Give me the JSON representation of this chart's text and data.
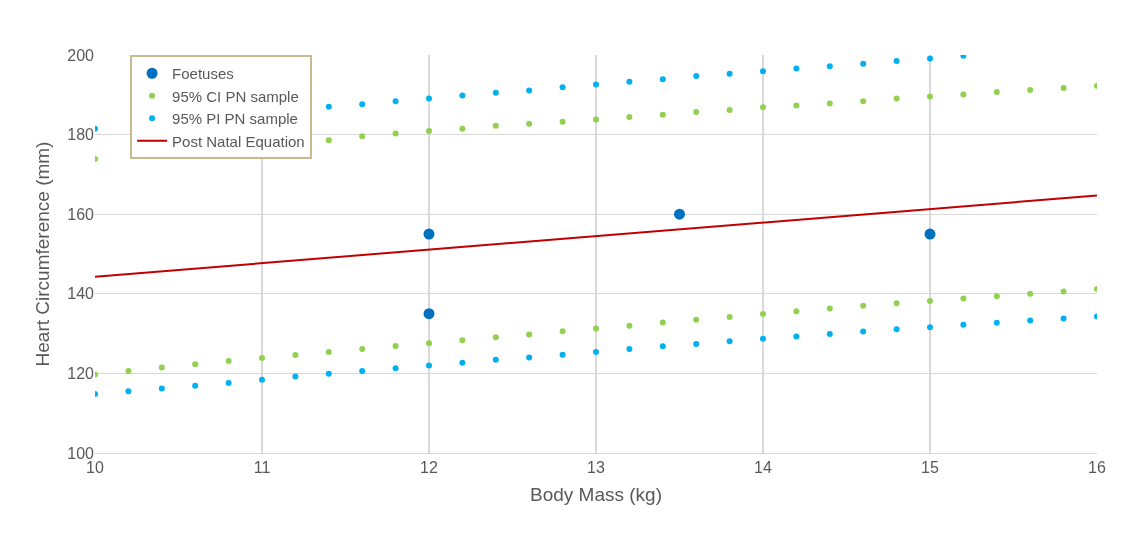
{
  "chart_data": {
    "type": "scatter",
    "xlabel": "Body Mass (kg)",
    "ylabel": "Heart Circumference (mm)",
    "xlim": [
      10,
      16
    ],
    "xticks": [
      10,
      11,
      12,
      13,
      14,
      15,
      16
    ],
    "ylim": [
      100,
      200
    ],
    "yticks": [
      100,
      120,
      140,
      160,
      180,
      200
    ],
    "grid": true,
    "legend": "top left",
    "series": [
      {
        "name": "Foetuses",
        "marker": "circle",
        "color": "#0070c0",
        "x": [
          12,
          12,
          13.5,
          15
        ],
        "values": [
          155,
          135,
          160,
          155
        ]
      },
      {
        "name": "95% CI PN sample",
        "marker": "circle",
        "color": "#92d050",
        "x": [
          10,
          10.2,
          10.4,
          10.6,
          10.8,
          11,
          11.2,
          11.4,
          11.6,
          11.8,
          12,
          12.2,
          12.4,
          12.6,
          12.8,
          13,
          13.2,
          13.4,
          13.6,
          13.8,
          14,
          14.2,
          14.4,
          14.6,
          14.8,
          15,
          15.2,
          15.4,
          15.6,
          15.8,
          16,
          10,
          10.2,
          10.4,
          10.6,
          10.8,
          11,
          11.2,
          11.4,
          11.6,
          11.8,
          12,
          12.2,
          12.4,
          12.6,
          12.8,
          13,
          13.2,
          13.4,
          13.6,
          13.8,
          14,
          14.2,
          14.4,
          14.6,
          14.8,
          15,
          15.2,
          15.4,
          15.6,
          15.8,
          16
        ],
        "values": [
          173.9,
          null,
          null,
          null,
          null,
          null,
          null,
          178.6,
          179.6,
          180.3,
          180.9,
          181.5,
          182.2,
          182.7,
          183.2,
          183.8,
          184.4,
          185,
          185.7,
          186.2,
          186.9,
          187.3,
          187.8,
          188.4,
          189.1,
          189.6,
          190.1,
          190.7,
          191.2,
          191.7,
          192.2,
          119.7,
          120.6,
          121.5,
          122.3,
          123.1,
          123.9,
          124.6,
          125.4,
          126.1,
          126.9,
          127.6,
          128.3,
          129.1,
          129.8,
          130.6,
          131.3,
          132,
          132.8,
          133.5,
          134.2,
          134.9,
          135.6,
          136.3,
          137,
          137.6,
          138.2,
          138.8,
          139.4,
          140,
          140.6,
          141.2
        ]
      },
      {
        "name": "95% PI PN sample",
        "marker": "circle",
        "color": "#00b0f0",
        "x": [
          10,
          10.2,
          10.4,
          10.6,
          10.8,
          11,
          11.2,
          11.4,
          11.6,
          11.8,
          12,
          12.2,
          12.4,
          12.6,
          12.8,
          13,
          13.2,
          13.4,
          13.6,
          13.8,
          14,
          14.2,
          14.4,
          14.6,
          14.8,
          15,
          15.2,
          10,
          10.2,
          10.4,
          10.6,
          10.8,
          11,
          11.2,
          11.4,
          11.6,
          11.8,
          12,
          12.2,
          12.4,
          12.6,
          12.8,
          13,
          13.2,
          13.4,
          13.6,
          13.8,
          14,
          14.2,
          14.4,
          14.6,
          14.8,
          15,
          15.2,
          15.4,
          15.6,
          15.8,
          16
        ],
        "values": [
          181.5,
          null,
          null,
          null,
          null,
          null,
          null,
          187,
          187.6,
          188.4,
          189.1,
          189.8,
          190.5,
          191.1,
          191.9,
          192.6,
          193.3,
          193.9,
          194.7,
          195.3,
          195.9,
          196.6,
          197.2,
          197.8,
          198.5,
          199.1,
          199.8,
          114.8,
          115.5,
          116.2,
          116.9,
          117.6,
          118.4,
          119.2,
          119.9,
          120.6,
          121.3,
          122,
          122.7,
          123.4,
          124,
          124.7,
          125.4,
          126.1,
          126.8,
          127.4,
          128.1,
          128.7,
          129.3,
          129.9,
          130.5,
          131.1,
          131.6,
          132.2,
          132.7,
          133.3,
          133.8,
          134.3
        ]
      },
      {
        "name": "Post Natal Equation",
        "type": "line",
        "marker": "none",
        "line_style": "solid",
        "color": "#c00000",
        "x": [
          10,
          16
        ],
        "values": [
          144.3,
          164.7
        ]
      }
    ]
  }
}
